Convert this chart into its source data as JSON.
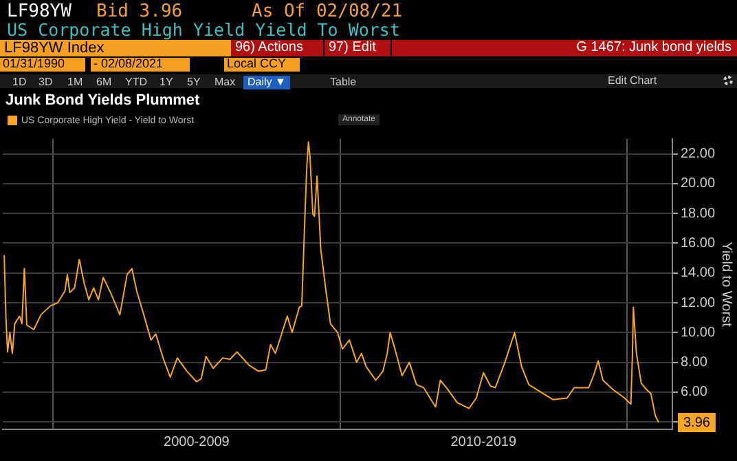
{
  "chart_data": {
    "type": "line",
    "title": "Junk Bond Yields Plummet",
    "subtitle": "US Corporate High Yield Yield To Worst",
    "ylabel": "Yield to Worst",
    "legend": "top left",
    "grid": true,
    "marker": "none",
    "line_style": "solid",
    "xlim": [
      "1998-04-01",
      "2021-08-01"
    ],
    "xticks": [
      {
        "value": "2000-01-01",
        "label": null
      },
      {
        "value": "2005-01-01",
        "label": "2000-2009"
      },
      {
        "value": "2010-01-01",
        "label": null
      },
      {
        "value": "2015-01-01",
        "label": "2010-2019"
      },
      {
        "value": "2020-01-01",
        "label": null
      }
    ],
    "ylim": [
      3.5,
      23
    ],
    "yticks": [
      {
        "value": 4,
        "label": null
      },
      {
        "value": 6,
        "label": "6.00"
      },
      {
        "value": 8,
        "label": "8.00"
      },
      {
        "value": 10,
        "label": "10.00"
      },
      {
        "value": 12,
        "label": "12.00"
      },
      {
        "value": 14,
        "label": "14.00"
      },
      {
        "value": 16,
        "label": "16.00"
      },
      {
        "value": 18,
        "label": "18.00"
      },
      {
        "value": 20,
        "label": "20.00"
      },
      {
        "value": 22,
        "label": "22.00"
      }
    ],
    "series": [
      {
        "name": "US Corporate High Yield - Yield to Worst",
        "color": "#f5a623",
        "x": [
          "1998-04-20",
          "1998-05-10",
          "1998-06",
          "1998-07",
          "1998-08",
          "1998-09",
          "1998-11",
          "1998-12",
          "1999-01",
          "1999-02",
          "1999-05",
          "1999-08",
          "1999-12",
          "2000-03",
          "2000-06",
          "2000-07",
          "2000-08",
          "2000-10",
          "2000-12",
          "2001-02",
          "2001-04",
          "2001-06",
          "2001-08",
          "2001-10",
          "2002-01",
          "2002-05",
          "2002-08",
          "2002-10",
          "2002-12",
          "2003-03",
          "2003-06",
          "2003-08",
          "2003-11",
          "2004-02",
          "2004-05",
          "2004-09",
          "2005-01",
          "2005-03",
          "2005-05",
          "2005-08",
          "2005-12",
          "2006-03",
          "2006-06",
          "2006-11",
          "2007-03",
          "2007-06",
          "2007-08",
          "2007-10",
          "2008-03",
          "2008-05",
          "2008-08",
          "2008-09",
          "2008-10-15",
          "2008-11-05",
          "2008-11-25",
          "2008-12-15",
          "2009-01-20",
          "2009-02-10",
          "2009-03-15",
          "2009-05",
          "2009-07",
          "2009-09",
          "2009-12",
          "2010-02",
          "2010-05",
          "2010-08",
          "2010-10",
          "2010-12",
          "2011-04",
          "2011-07",
          "2011-08-25",
          "2011-10",
          "2011-12",
          "2012-03",
          "2012-06",
          "2012-09",
          "2012-12",
          "2013-05",
          "2013-07",
          "2013-10",
          "2014-02",
          "2014-07",
          "2014-10",
          "2015-01",
          "2015-04",
          "2015-06",
          "2015-10",
          "2016-02",
          "2016-05",
          "2016-08",
          "2017-01",
          "2017-06",
          "2017-12",
          "2018-03",
          "2018-09",
          "2018-11",
          "2019-01",
          "2019-03",
          "2019-07",
          "2019-12",
          "2020-02-20",
          "2020-03-10",
          "2020-03-23",
          "2020-05",
          "2020-07",
          "2020-09",
          "2020-11",
          "2020-12-28",
          "2021-02-08"
        ],
        "values": [
          15.2,
          11.2,
          8.7,
          10.0,
          8.6,
          10.6,
          11.1,
          10.6,
          14.3,
          10.5,
          10.2,
          11.2,
          11.8,
          12.0,
          12.8,
          13.9,
          12.7,
          13.0,
          14.9,
          13.3,
          12.2,
          13.0,
          12.2,
          13.7,
          12.7,
          11.2,
          13.9,
          14.3,
          12.8,
          11.2,
          9.5,
          9.9,
          8.3,
          7.0,
          8.3,
          7.4,
          6.7,
          6.9,
          8.4,
          7.6,
          8.3,
          8.2,
          8.7,
          7.8,
          7.4,
          7.5,
          9.2,
          8.6,
          11.1,
          10.0,
          11.7,
          11.8,
          18.4,
          21.2,
          22.8,
          21.8,
          18.0,
          17.8,
          20.5,
          15.6,
          13.0,
          10.6,
          10.0,
          8.9,
          9.5,
          8.0,
          8.6,
          7.7,
          6.8,
          7.4,
          8.6,
          10.0,
          8.9,
          7.1,
          8.0,
          6.5,
          6.3,
          5.0,
          6.8,
          6.2,
          5.3,
          4.9,
          5.6,
          7.3,
          6.4,
          6.3,
          8.0,
          10.0,
          7.7,
          6.5,
          6.0,
          5.5,
          5.6,
          6.3,
          6.3,
          7.1,
          8.1,
          6.8,
          6.2,
          5.6,
          5.2,
          8.3,
          11.7,
          8.6,
          6.6,
          6.2,
          5.9,
          4.4,
          3.96
        ]
      }
    ],
    "annotations": [
      "LF98YW",
      "Bid 3.96",
      "As Of 02/08/21",
      "LF98YW Index",
      "96) Actions",
      "97) Edit",
      "G 1467: Junk bond yields",
      "01/31/1990",
      "- 02/08/2021",
      "Local CCY",
      "1D",
      "3D",
      "1M",
      "6M",
      "YTD",
      "1Y",
      "5Y",
      "Max",
      "Daily ▼",
      "Table",
      "Edit Chart",
      "Annotate",
      {
        "text": "3.96",
        "x": "2021-02-08",
        "y": 3.96
      }
    ]
  }
}
